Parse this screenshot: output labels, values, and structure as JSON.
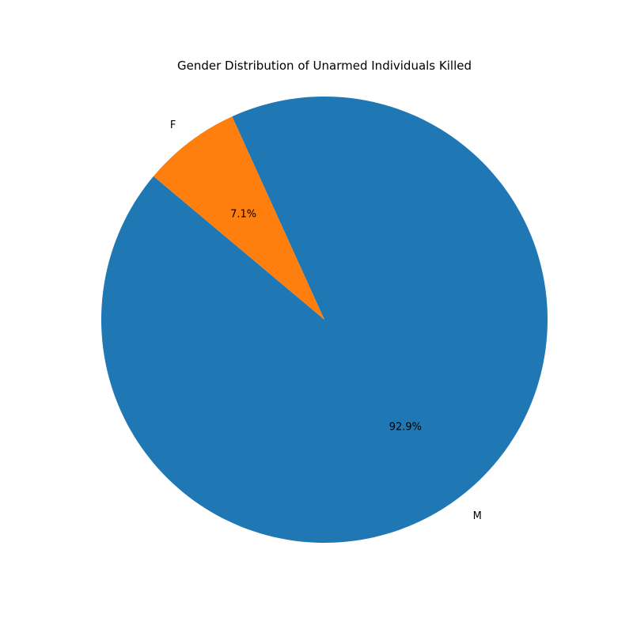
{
  "chart_data": {
    "type": "pie",
    "title": "Gender Distribution of Unarmed Individuals Killed",
    "categories": [
      "M",
      "F"
    ],
    "values": [
      92.9,
      7.1
    ],
    "value_labels": [
      "92.9%",
      "7.1%"
    ],
    "colors": [
      "#1f77b4",
      "#ff7f0e"
    ],
    "start_angle_deg": 140,
    "legend": "none"
  }
}
